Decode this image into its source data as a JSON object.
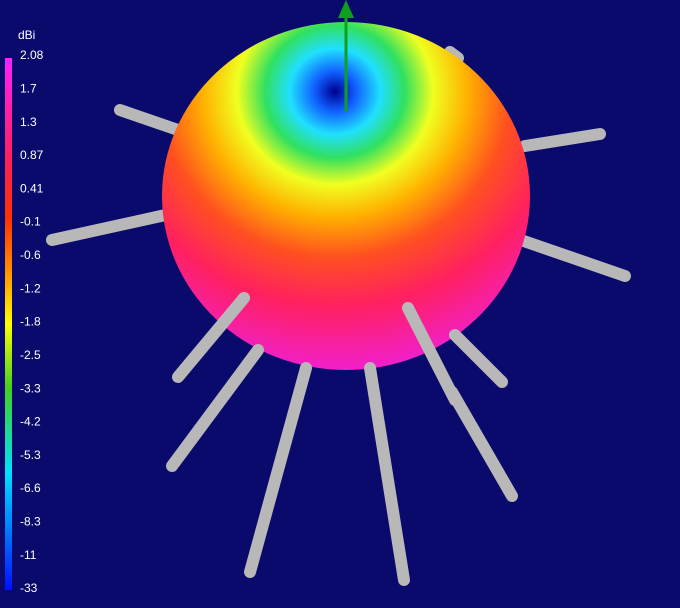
{
  "colorbar": {
    "unit": "dBi",
    "labels": [
      "2.08",
      "1.7",
      "1.3",
      "0.87",
      "0.41",
      "-0.1",
      "-0.6",
      "-1.2",
      "-1.8",
      "-2.5",
      "-3.3",
      "-4.2",
      "-5.3",
      "-6.6",
      "-8.3",
      "-11",
      "-33"
    ]
  }
}
